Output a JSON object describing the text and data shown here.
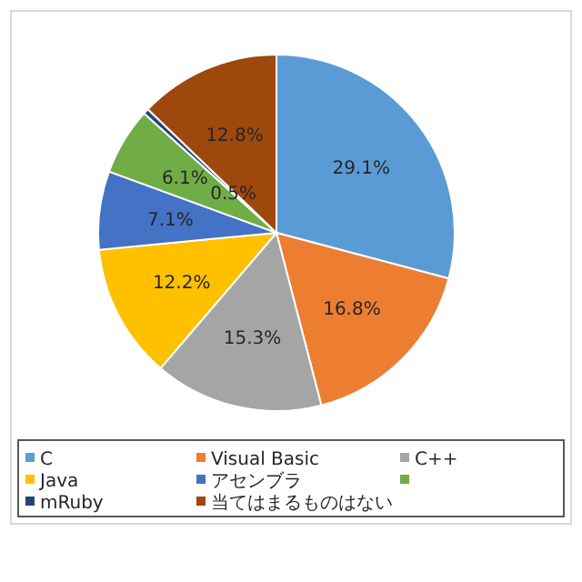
{
  "chart_data": {
    "type": "pie",
    "categories": [
      "C",
      "Visual Basic",
      "C++",
      "Java",
      "アセンブラ",
      null,
      "mRuby",
      "当てはまるものはない"
    ],
    "values": [
      29.1,
      16.8,
      15.3,
      12.2,
      7.1,
      6.1,
      0.5,
      12.8
    ],
    "colors": [
      "#5b9bd5",
      "#ed7d31",
      "#a5a5a5",
      "#ffc000",
      "#4472c4",
      "#70ad47",
      "#264478",
      "#9e480e"
    ],
    "value_labels": [
      "29.1%",
      "16.8%",
      "15.3%",
      "12.2%",
      "7.1%",
      "6.1%",
      "0.5%",
      "12.8%"
    ],
    "legend": "bottom"
  }
}
